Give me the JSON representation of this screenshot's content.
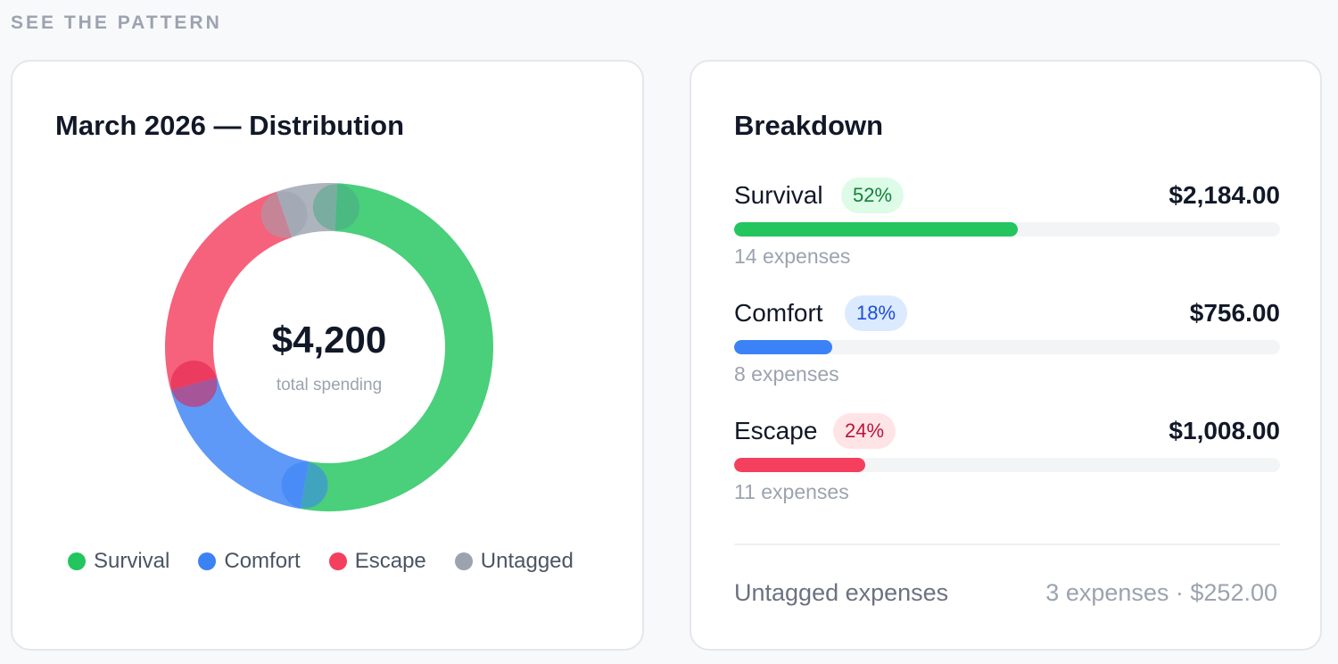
{
  "section_label": "SEE THE PATTERN",
  "left_card": {
    "title": "March 2026 — Distribution",
    "center_value": "$4,200",
    "center_label": "total spending"
  },
  "chart_data": {
    "type": "pie",
    "title": "March 2026 — Distribution",
    "total": 4200,
    "slices": [
      {
        "name": "Survival",
        "value": 2184,
        "color": "#22c55e"
      },
      {
        "name": "Comfort",
        "value": 756,
        "color": "#3b82f6"
      },
      {
        "name": "Escape",
        "value": 1008,
        "color": "#f43f5e"
      },
      {
        "name": "Untagged",
        "value": 252,
        "color": "#9ca3af"
      }
    ],
    "legend": [
      "Survival",
      "Comfort",
      "Escape",
      "Untagged"
    ],
    "legend_position": "bottom"
  },
  "breakdown": {
    "title": "Breakdown",
    "rows": [
      {
        "label": "Survival",
        "percent": "52%",
        "amount": "$2,184.00",
        "count": "14 expenses",
        "fill_fraction": 0.52,
        "color": "#22c55e",
        "pill_bg": "#dcfce7",
        "pill_fg": "#15803d"
      },
      {
        "label": "Comfort",
        "percent": "18%",
        "amount": "$756.00",
        "count": "8 expenses",
        "fill_fraction": 0.18,
        "color": "#3b82f6",
        "pill_bg": "#dbeafe",
        "pill_fg": "#1d4ed8"
      },
      {
        "label": "Escape",
        "percent": "24%",
        "amount": "$1,008.00",
        "count": "11 expenses",
        "fill_fraction": 0.24,
        "color": "#f43f5e",
        "pill_bg": "#ffe4e6",
        "pill_fg": "#be123c"
      }
    ],
    "untagged_label": "Untagged expenses",
    "untagged_value": "3 expenses · $252.00"
  }
}
